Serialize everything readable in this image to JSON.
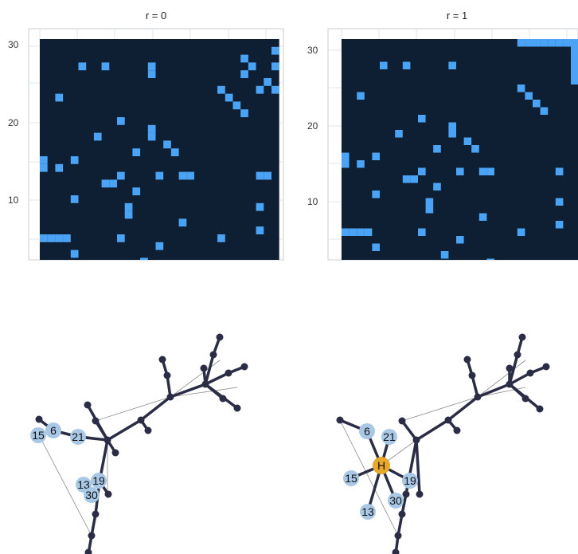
{
  "colors": {
    "matrix_bg": "#0f1f33",
    "cell": "#4aa3f5",
    "grid": "#e2e6ea",
    "frame": "#c8ccd0",
    "edge": "#2a2d45",
    "thin_edge": "#8a8a8a",
    "label_node": "#a9c8e6",
    "hub_node": "#e8a82b"
  },
  "panels": [
    {
      "title": "r = 0",
      "ticks": [
        "10",
        "20",
        "30"
      ],
      "cells": [
        [
          30,
          31
        ],
        [
          29,
          27
        ],
        [
          28,
          6
        ],
        [
          28,
          9
        ],
        [
          28,
          15
        ],
        [
          28,
          28
        ],
        [
          28,
          31
        ],
        [
          27,
          15
        ],
        [
          27,
          27
        ],
        [
          26,
          30
        ],
        [
          25,
          24
        ],
        [
          25,
          29
        ],
        [
          25,
          31
        ],
        [
          24,
          3
        ],
        [
          24,
          25
        ],
        [
          23,
          26
        ],
        [
          22,
          27
        ],
        [
          21,
          11
        ],
        [
          20,
          15
        ],
        [
          19,
          8
        ],
        [
          19,
          15
        ],
        [
          18,
          17
        ],
        [
          17,
          13
        ],
        [
          17,
          18
        ],
        [
          16,
          1
        ],
        [
          16,
          5
        ],
        [
          15,
          1
        ],
        [
          15,
          3
        ],
        [
          14,
          11
        ],
        [
          14,
          16
        ],
        [
          14,
          19
        ],
        [
          14,
          20
        ],
        [
          14,
          29
        ],
        [
          14,
          30
        ],
        [
          13,
          9
        ],
        [
          13,
          10
        ],
        [
          12,
          13
        ],
        [
          11,
          5
        ],
        [
          10,
          12
        ],
        [
          10,
          29
        ],
        [
          9,
          12
        ],
        [
          8,
          19
        ],
        [
          7,
          29
        ],
        [
          6,
          1
        ],
        [
          6,
          2
        ],
        [
          6,
          3
        ],
        [
          6,
          4
        ],
        [
          6,
          11
        ],
        [
          6,
          24
        ],
        [
          5,
          16
        ],
        [
          4,
          5
        ],
        [
          3,
          14
        ],
        [
          2,
          20
        ]
      ],
      "nodes": [
        {
          "id": "15",
          "label": "15",
          "kind": "label"
        },
        {
          "id": "6",
          "label": "6",
          "kind": "label"
        },
        {
          "id": "21",
          "label": "21",
          "kind": "label"
        },
        {
          "id": "19",
          "label": "19",
          "kind": "label"
        },
        {
          "id": "13",
          "label": "13",
          "kind": "label"
        },
        {
          "id": "30",
          "label": "30",
          "kind": "label"
        }
      ]
    },
    {
      "title": "r = 1",
      "ticks": [
        "10",
        "20",
        "30"
      ],
      "cells": [
        [
          31,
          24
        ],
        [
          31,
          25
        ],
        [
          31,
          26
        ],
        [
          31,
          27
        ],
        [
          31,
          28
        ],
        [
          31,
          29
        ],
        [
          31,
          30
        ],
        [
          31,
          31
        ],
        [
          30,
          31
        ],
        [
          29,
          31
        ],
        [
          28,
          31
        ],
        [
          27,
          31
        ],
        [
          26,
          31
        ],
        [
          28,
          6
        ],
        [
          28,
          9
        ],
        [
          28,
          15
        ],
        [
          25,
          24
        ],
        [
          24,
          3
        ],
        [
          24,
          25
        ],
        [
          23,
          26
        ],
        [
          22,
          27
        ],
        [
          21,
          11
        ],
        [
          20,
          15
        ],
        [
          19,
          8
        ],
        [
          19,
          15
        ],
        [
          18,
          17
        ],
        [
          17,
          13
        ],
        [
          17,
          18
        ],
        [
          16,
          1
        ],
        [
          16,
          5
        ],
        [
          15,
          1
        ],
        [
          15,
          3
        ],
        [
          14,
          11
        ],
        [
          14,
          16
        ],
        [
          14,
          19
        ],
        [
          14,
          20
        ],
        [
          14,
          29
        ],
        [
          13,
          9
        ],
        [
          13,
          10
        ],
        [
          12,
          13
        ],
        [
          11,
          5
        ],
        [
          10,
          12
        ],
        [
          10,
          29
        ],
        [
          9,
          12
        ],
        [
          8,
          19
        ],
        [
          7,
          29
        ],
        [
          6,
          1
        ],
        [
          6,
          2
        ],
        [
          6,
          3
        ],
        [
          6,
          4
        ],
        [
          6,
          11
        ],
        [
          6,
          24
        ],
        [
          5,
          16
        ],
        [
          4,
          5
        ],
        [
          3,
          14
        ],
        [
          2,
          20
        ]
      ],
      "nodes": [
        {
          "id": "H",
          "label": "H",
          "kind": "hub"
        },
        {
          "id": "6",
          "label": "6",
          "kind": "label"
        },
        {
          "id": "21",
          "label": "21",
          "kind": "label"
        },
        {
          "id": "15",
          "label": "15",
          "kind": "label"
        },
        {
          "id": "19",
          "label": "19",
          "kind": "label"
        },
        {
          "id": "30",
          "label": "30",
          "kind": "label"
        },
        {
          "id": "13",
          "label": "13",
          "kind": "label"
        }
      ]
    }
  ]
}
